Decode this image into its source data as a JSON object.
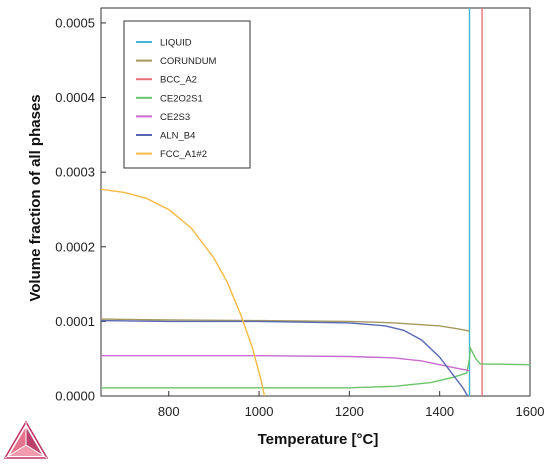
{
  "chart_data": {
    "type": "line",
    "xlabel": "Temperature [°C]",
    "ylabel": "Volume fraction of all phases",
    "xlim": [
      650,
      1600
    ],
    "ylim": [
      0,
      0.00052
    ],
    "x_ticks": [
      800,
      1000,
      1200,
      1400,
      1600
    ],
    "y_ticks": [
      0,
      0.0001,
      0.0002,
      0.0003,
      0.0004,
      0.0005
    ],
    "x_tick_labels": [
      "800",
      "1000",
      "1200",
      "1400",
      "1600"
    ],
    "y_tick_labels": [
      "0.0000",
      "0.0001",
      "0.0002",
      "0.0003",
      "0.0004",
      "0.0005"
    ],
    "legend_position": "top-left",
    "grid": false,
    "series": [
      {
        "name": "LIQUID",
        "color": "#3fb8cf",
        "x": [
          1466,
          1466
        ],
        "y": [
          0,
          0.00052
        ]
      },
      {
        "name": "CORUNDUM",
        "color": "#a59a5e",
        "x": [
          650,
          800,
          1000,
          1200,
          1300,
          1400,
          1440,
          1466
        ],
        "y": [
          0.000103,
          0.000102,
          0.000101,
          0.0001,
          9.8e-05,
          9.4e-05,
          9e-05,
          8.7e-05
        ]
      },
      {
        "name": "BCC_A2",
        "color": "#e8707a",
        "x": [
          1494,
          1494
        ],
        "y": [
          0,
          0.00052
        ]
      },
      {
        "name": "CE2O2S1",
        "color": "#6bc46b",
        "x": [
          650,
          800,
          1000,
          1200,
          1300,
          1380,
          1430,
          1460,
          1466,
          1468,
          1480,
          1490,
          1600
        ],
        "y": [
          1.1e-05,
          1.1e-05,
          1.1e-05,
          1.1e-05,
          1.3e-05,
          1.8e-05,
          2.5e-05,
          3.1e-05,
          5e-05,
          6.4e-05,
          5e-05,
          4.3e-05,
          4.2e-05
        ]
      },
      {
        "name": "CE2S3",
        "color": "#c86ccf",
        "x": [
          650,
          800,
          1000,
          1200,
          1300,
          1360,
          1400,
          1440,
          1466
        ],
        "y": [
          5.4e-05,
          5.4e-05,
          5.4e-05,
          5.3e-05,
          5.1e-05,
          4.7e-05,
          4.2e-05,
          3.7e-05,
          3.4e-05
        ]
      },
      {
        "name": "ALN_B4",
        "color": "#5a68b4",
        "x": [
          650,
          800,
          1000,
          1200,
          1280,
          1320,
          1360,
          1400,
          1430,
          1450,
          1462
        ],
        "y": [
          0.000101,
          0.0001,
          0.0001,
          9.8e-05,
          9.4e-05,
          8.8e-05,
          7.5e-05,
          5.2e-05,
          2.8e-05,
          1.2e-05,
          0.0
        ],
        "note": ""
      },
      {
        "name": "FCC_A1#2",
        "color": "#f5b942",
        "x": [
          650,
          700,
          750,
          800,
          850,
          900,
          930,
          960,
          985,
          1005,
          1012
        ],
        "y": [
          0.000277,
          0.000273,
          0.000265,
          0.00025,
          0.000225,
          0.000185,
          0.000152,
          0.000108,
          6.5e-05,
          2e-05,
          0.0
        ]
      }
    ]
  },
  "logo": {
    "name": "thermo-calc-logo"
  }
}
